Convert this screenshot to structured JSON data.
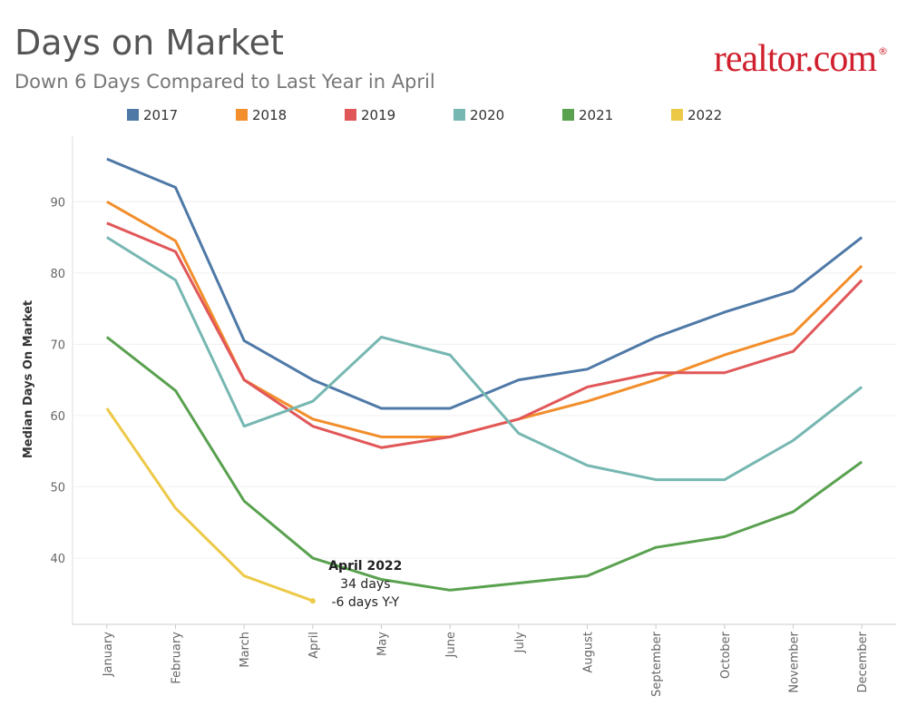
{
  "chart_data": {
    "type": "line",
    "title": "Days on Market",
    "subtitle": "Down 6 Days Compared to Last Year in April",
    "logo": "realtor.com",
    "logo_mark": "®",
    "ylabel": "Median Days On Market",
    "categories": [
      "January",
      "February",
      "March",
      "April",
      "May",
      "June",
      "July",
      "August",
      "September",
      "October",
      "November",
      "December"
    ],
    "series": [
      {
        "name": "2017",
        "color": "#4e79a7",
        "values": [
          96,
          92,
          70.5,
          65,
          61,
          61,
          65,
          66.5,
          71,
          74.5,
          77.5,
          85
        ]
      },
      {
        "name": "2018",
        "color": "#f28e2b",
        "values": [
          90,
          84.5,
          65,
          59.5,
          57,
          57,
          59.5,
          62,
          65,
          68.5,
          71.5,
          81
        ]
      },
      {
        "name": "2019",
        "color": "#e15759",
        "values": [
          87,
          83,
          65,
          58.5,
          55.5,
          57,
          59.5,
          64,
          66,
          66,
          69,
          79
        ]
      },
      {
        "name": "2020",
        "color": "#76b7b2",
        "values": [
          85,
          79,
          58.5,
          62,
          71,
          68.5,
          57.5,
          53,
          51,
          51,
          56.5,
          64
        ]
      },
      {
        "name": "2021",
        "color": "#59a14f",
        "values": [
          71,
          63.5,
          48,
          40,
          37,
          35.5,
          36.5,
          37.5,
          41.5,
          43,
          46.5,
          53.5
        ]
      },
      {
        "name": "2022",
        "color": "#edc948",
        "values": [
          61,
          47,
          37.5,
          34,
          null,
          null,
          null,
          null,
          null,
          null,
          null,
          null
        ]
      }
    ],
    "annotation": [
      "April 2022",
      "34 days",
      "-6 days Y-Y"
    ],
    "ylim": [
      30.7,
      99.2
    ],
    "yticks": [
      40,
      50,
      60,
      70,
      80,
      90
    ],
    "grid": true,
    "legend": "top"
  }
}
